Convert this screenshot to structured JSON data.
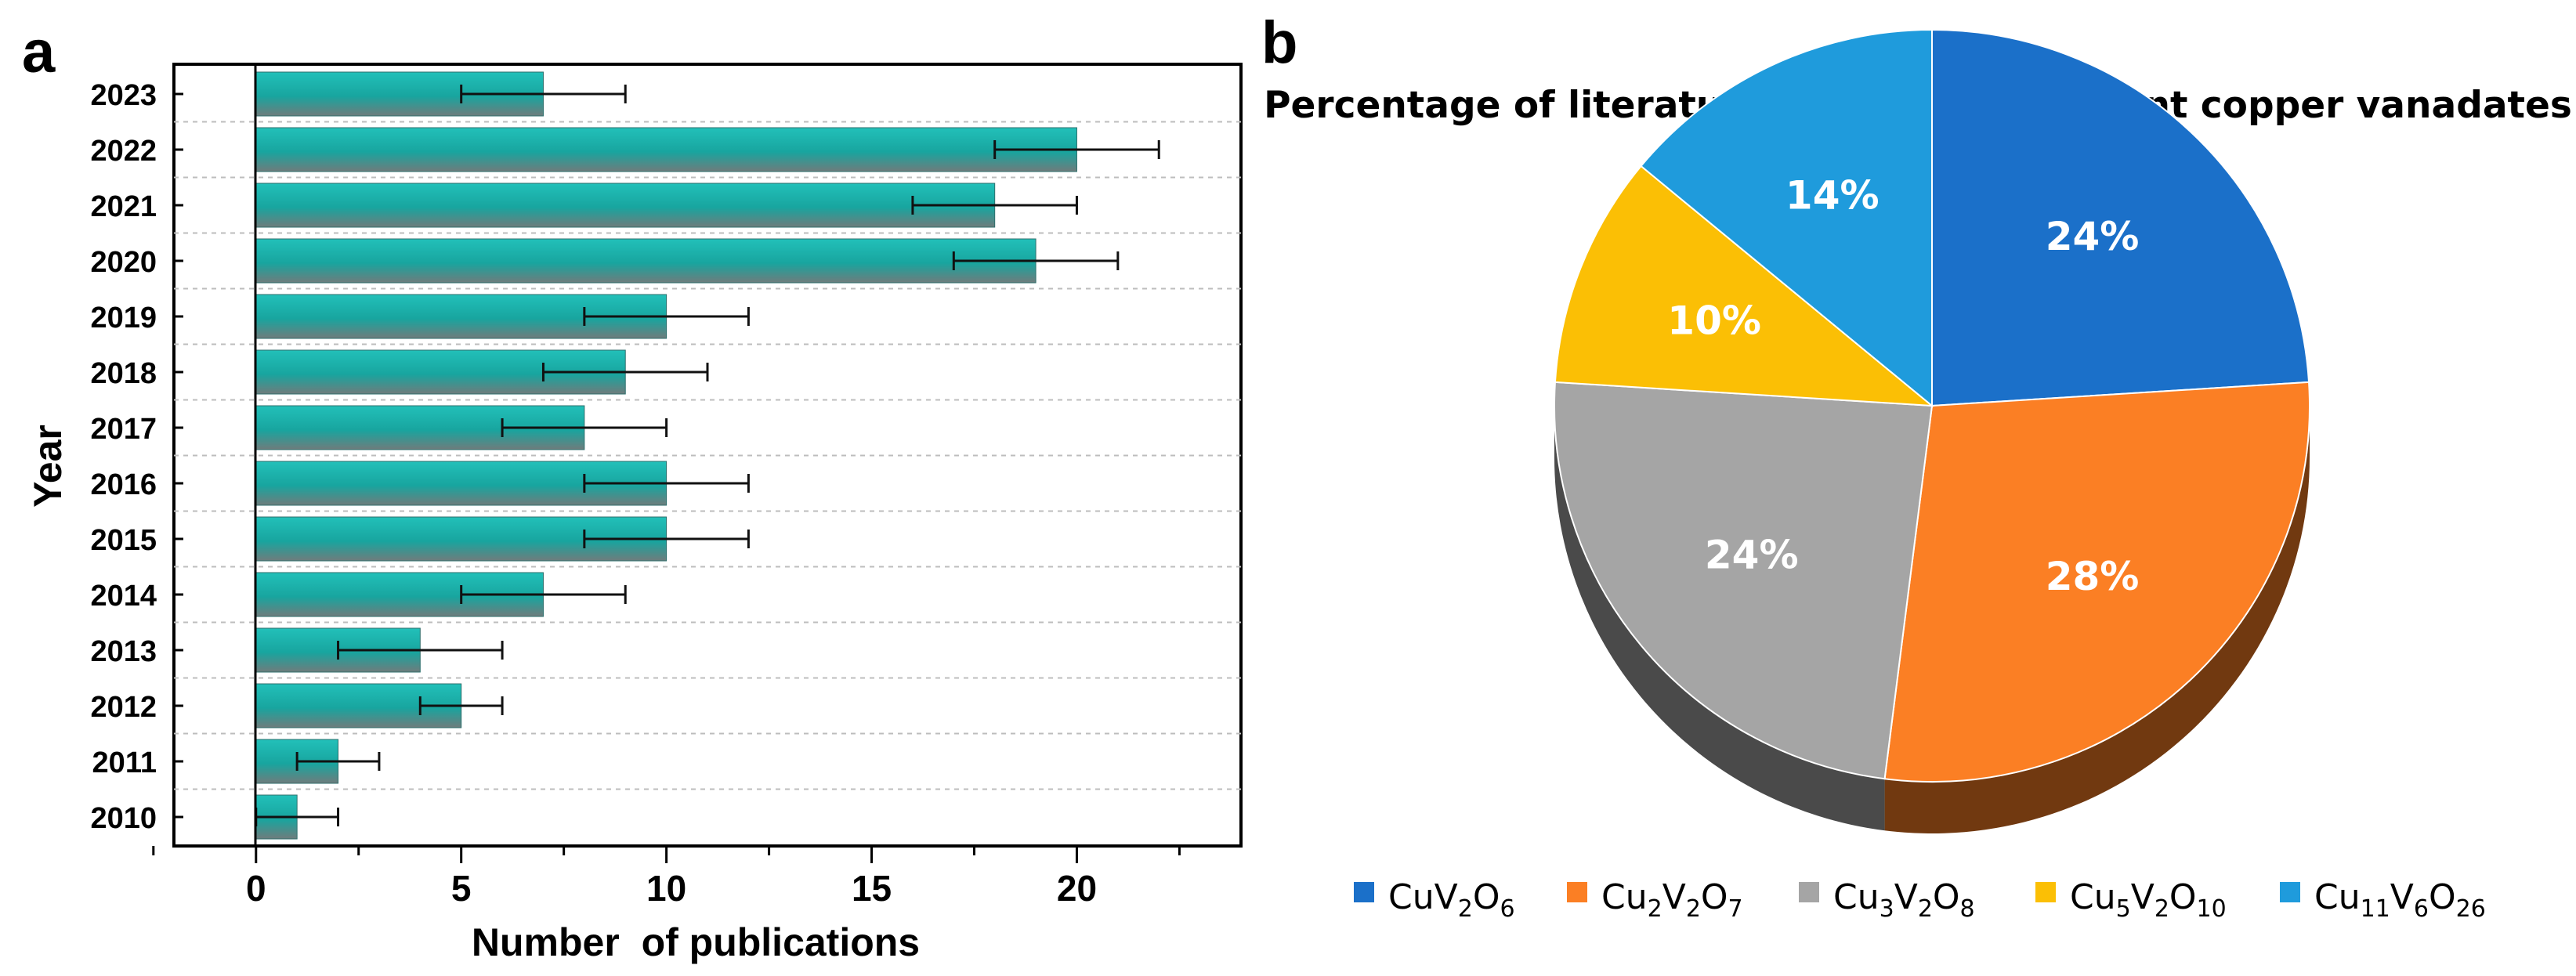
{
  "chart_data": [
    {
      "panel_label": "a",
      "type": "bar",
      "orientation": "horizontal",
      "title": "",
      "xlabel": "Number  of publications",
      "ylabel": "Year",
      "xlim": [
        -2,
        24
      ],
      "xticks": [
        "0",
        "5",
        "10",
        "15",
        "20"
      ],
      "xtick_values": [
        0,
        5,
        10,
        15,
        20
      ],
      "categories": [
        "2023",
        "2022",
        "2021",
        "2020",
        "2019",
        "2018",
        "2017",
        "2016",
        "2015",
        "2014",
        "2013",
        "2012",
        "2011",
        "2010"
      ],
      "values": [
        7,
        20,
        18,
        19,
        10,
        9,
        8,
        10,
        10,
        7,
        4,
        5,
        2,
        1
      ],
      "error_low": [
        5,
        18,
        16,
        17,
        8,
        7,
        6,
        8,
        8,
        5,
        2,
        4,
        1,
        0
      ],
      "error_high": [
        9,
        22,
        20,
        21,
        12,
        11,
        10,
        12,
        12,
        9,
        6,
        6,
        3,
        2
      ],
      "grid": "horizontal dashed",
      "bar_color": "#1aaea8",
      "bar_shadow_color": "#7a7a7a"
    },
    {
      "panel_label": "b",
      "type": "pie",
      "title": "Percentage of literature studies on different copper vanadates",
      "slices": [
        {
          "label": "24%",
          "value": 24,
          "color": "#1b70c9",
          "legend": {
            "parts": [
              "CuV",
              "2",
              "O",
              "6"
            ]
          }
        },
        {
          "label": "28%",
          "value": 28,
          "color": "#fb7f24",
          "legend": {
            "parts": [
              "Cu",
              "2",
              "V",
              "2",
              "O",
              "7"
            ]
          }
        },
        {
          "label": "24%",
          "value": 24,
          "color": "#a5a5a5",
          "legend": {
            "parts": [
              "Cu",
              "3",
              "V",
              "2",
              "O",
              "8"
            ]
          }
        },
        {
          "label": "10%",
          "value": 10,
          "color": "#fbbf05",
          "legend": {
            "parts": [
              "Cu",
              "5",
              "V",
              "2",
              "O",
              "10"
            ]
          }
        },
        {
          "label": "14%",
          "value": 14,
          "color": "#1f9bdc",
          "legend": {
            "parts": [
              "Cu",
              "11",
              "V",
              "6",
              "O",
              "26"
            ]
          }
        }
      ],
      "legend_position": "bottom",
      "style": "3d"
    }
  ]
}
